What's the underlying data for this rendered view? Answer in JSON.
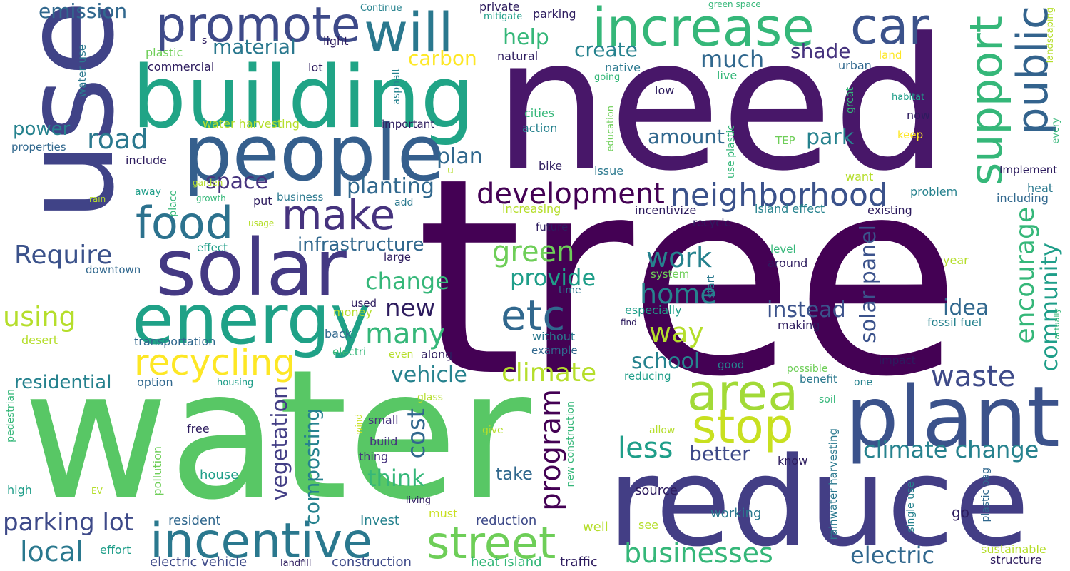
{
  "words": [
    "tree",
    "need",
    "water",
    "use",
    "reduce",
    "building",
    "people",
    "solar",
    "plant",
    "energy",
    "increase",
    "will",
    "promote",
    "car",
    "area",
    "support",
    "public",
    "incentive",
    "street",
    "stop",
    "food",
    "make",
    "development",
    "neighborhood",
    "recycling",
    "etc",
    "green",
    "home",
    "work",
    "program",
    "encourage",
    "community",
    "waste",
    "road",
    "way",
    "many",
    "change",
    "provide",
    "new",
    "vehicle",
    "climate",
    "less",
    "climate change",
    "businesses",
    "electric",
    "local",
    "parking lot",
    "Require",
    "using",
    "plan",
    "space",
    "planting",
    "infrastructure",
    "emission",
    "power",
    "residential",
    "solar panel",
    "instead",
    "idea",
    "school",
    "think",
    "vegetation",
    "composting",
    "cost",
    "better",
    "take",
    "carbon",
    "material",
    "help",
    "create",
    "much",
    "shade",
    "amount",
    "park",
    "electric vehicle",
    "construction",
    "heat island",
    "traffic",
    "Invest",
    "reduction",
    "resident",
    "must",
    "working",
    "go",
    "well",
    "see",
    "source",
    "effort",
    "high",
    "house",
    "free",
    "pedestrian",
    "pollution",
    "EV",
    "option",
    "housing",
    "transportation",
    "desert",
    "back",
    "money",
    "used",
    "without",
    "example",
    "along",
    "even",
    "electri",
    "glass",
    "small",
    "build",
    "thing",
    "wind",
    "give",
    "allow",
    "new construction",
    "rainwater harvesting",
    "know",
    "single use",
    "plastic bag",
    "soil",
    "benefit",
    "one",
    "possible",
    "good",
    "impact",
    "reducing",
    "especially",
    "find",
    "making",
    "fossil fuel",
    "actually",
    "sustainable",
    "structure",
    "living",
    "landfill",
    "year",
    "around",
    "level",
    "system",
    "start",
    "time",
    "issue",
    "bike",
    "want",
    "problem",
    "heat",
    "including",
    "Implement",
    "increasing",
    "incentivize",
    "island effect",
    "existing",
    "future",
    "recycle",
    "effect",
    "downtown",
    "large",
    "add",
    "put",
    "business",
    "place",
    "away",
    "include",
    "garden",
    "growth",
    "rain",
    "usage",
    "properties",
    "water harvesting",
    "important",
    "action",
    "cities",
    "education",
    "use plastic",
    "TEP",
    "keep",
    "now",
    "every",
    "habitat",
    "great",
    "low",
    "urban",
    "live",
    "native",
    "going",
    "natural",
    "asphalt",
    "light",
    "lot",
    "commercial",
    "plastic",
    "water use",
    "s",
    "Continue",
    "private",
    "mitigate",
    "parking",
    "green space",
    "land",
    "landscaping",
    "u"
  ],
  "colors": {
    "background": "#ffffff",
    "palette_viridis": [
      "#440154",
      "#482878",
      "#3e4989",
      "#31688e",
      "#26828e",
      "#1f9e89",
      "#35b779",
      "#6ece58",
      "#b5de2b",
      "#fde725"
    ]
  }
}
